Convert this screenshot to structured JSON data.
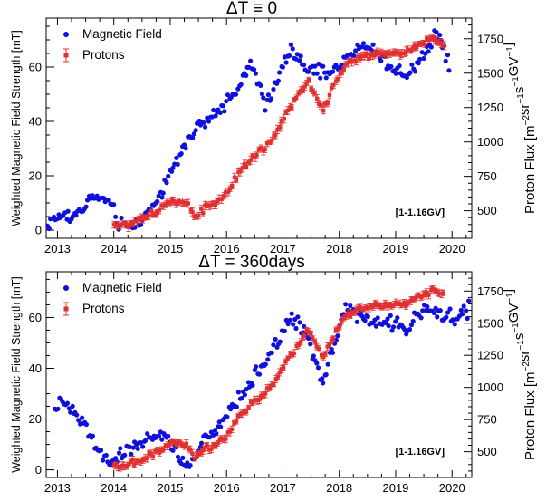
{
  "chart_data": [
    {
      "type": "scatter",
      "title": "ΔT ≡ 0",
      "xlabel": "",
      "ylabel": "Weighted Magnetic Field Strength [mT]",
      "y2label": "Proton Flux [m⁻²sr⁻¹s⁻¹GV⁻¹]",
      "xlim": [
        2012.8,
        2020.35
      ],
      "ylim": [
        -3,
        78
      ],
      "y2lim": [
        300,
        1900
      ],
      "x_ticks": [
        "2013",
        "2014",
        "2015",
        "2016",
        "2017",
        "2018",
        "2019",
        "2020"
      ],
      "y_ticks": [
        "0",
        "20",
        "40",
        "60"
      ],
      "y2_ticks": [
        "500",
        "750",
        "1000",
        "1250",
        "1500",
        "1750"
      ],
      "annotation": "[1-1.16GV]",
      "legend": {
        "position": "top-left"
      },
      "series": [
        {
          "name": "Magnetic Field",
          "color": "#1010dd",
          "axis": "left",
          "marker": "circle",
          "anchors": [
            [
              2012.82,
              2
            ],
            [
              2013.0,
              5
            ],
            [
              2013.2,
              5
            ],
            [
              2013.4,
              6
            ],
            [
              2013.55,
              12
            ],
            [
              2013.9,
              11
            ],
            [
              2014.1,
              2
            ],
            [
              2014.3,
              1
            ],
            [
              2014.6,
              6
            ],
            [
              2014.9,
              16
            ],
            [
              2015.2,
              30
            ],
            [
              2015.5,
              38
            ],
            [
              2015.8,
              42
            ],
            [
              2016.1,
              50
            ],
            [
              2016.3,
              56
            ],
            [
              2016.47,
              61
            ],
            [
              2016.7,
              45
            ],
            [
              2016.9,
              55
            ],
            [
              2017.15,
              68
            ],
            [
              2017.3,
              62
            ],
            [
              2017.5,
              58
            ],
            [
              2017.8,
              58
            ],
            [
              2018.0,
              60
            ],
            [
              2018.3,
              67
            ],
            [
              2018.6,
              67
            ],
            [
              2018.9,
              60
            ],
            [
              2019.2,
              57
            ],
            [
              2019.5,
              65
            ],
            [
              2019.75,
              73
            ],
            [
              2019.85,
              66
            ],
            [
              2019.95,
              61
            ]
          ],
          "jitter": 2.6,
          "count": 250
        },
        {
          "name": "Protons",
          "color": "#e03030",
          "axis": "right",
          "marker": "square",
          "error_bars": true,
          "anchors": [
            [
              2014.0,
              400
            ],
            [
              2014.25,
              395
            ],
            [
              2014.5,
              440
            ],
            [
              2014.8,
              510
            ],
            [
              2015.0,
              570
            ],
            [
              2015.3,
              560
            ],
            [
              2015.45,
              450
            ],
            [
              2015.6,
              520
            ],
            [
              2015.8,
              560
            ],
            [
              2016.0,
              620
            ],
            [
              2016.2,
              760
            ],
            [
              2016.5,
              900
            ],
            [
              2016.8,
              1000
            ],
            [
              2017.0,
              1170
            ],
            [
              2017.3,
              1350
            ],
            [
              2017.45,
              1450
            ],
            [
              2017.6,
              1310
            ],
            [
              2017.72,
              1230
            ],
            [
              2017.85,
              1370
            ],
            [
              2018.1,
              1550
            ],
            [
              2018.4,
              1630
            ],
            [
              2018.8,
              1640
            ],
            [
              2019.1,
              1640
            ],
            [
              2019.4,
              1700
            ],
            [
              2019.65,
              1760
            ],
            [
              2019.85,
              1720
            ]
          ],
          "jitter": 22,
          "count": 160
        }
      ]
    },
    {
      "type": "scatter",
      "title": "ΔT = 360days",
      "xlabel": "",
      "ylabel": "Weighted Magnetic Field Strength [mT]",
      "y2label": "Proton Flux [m⁻²sr⁻¹s⁻¹GV⁻¹]",
      "xlim": [
        2012.8,
        2020.35
      ],
      "ylim": [
        -3,
        78
      ],
      "y2lim": [
        300,
        1900
      ],
      "x_ticks": [
        "2013",
        "2014",
        "2015",
        "2016",
        "2017",
        "2018",
        "2019",
        "2020"
      ],
      "y_ticks": [
        "0",
        "20",
        "40",
        "60"
      ],
      "y2_ticks": [
        "500",
        "750",
        "1000",
        "1250",
        "1500",
        "1750"
      ],
      "annotation": "[1-1.16GV]",
      "legend": {
        "position": "top-left"
      },
      "series": [
        {
          "name": "Magnetic Field",
          "color": "#1010dd",
          "axis": "left",
          "marker": "circle",
          "anchors": [
            [
              2012.95,
              25
            ],
            [
              2013.1,
              26
            ],
            [
              2013.3,
              22
            ],
            [
              2013.5,
              17
            ],
            [
              2013.7,
              8
            ],
            [
              2013.9,
              3
            ],
            [
              2014.1,
              5
            ],
            [
              2014.4,
              10
            ],
            [
              2014.6,
              12
            ],
            [
              2014.9,
              14
            ],
            [
              2015.1,
              8
            ],
            [
              2015.2,
              3
            ],
            [
              2015.35,
              2
            ],
            [
              2015.6,
              12
            ],
            [
              2015.8,
              14
            ],
            [
              2016.0,
              22
            ],
            [
              2016.3,
              30
            ],
            [
              2016.6,
              40
            ],
            [
              2016.9,
              50
            ],
            [
              2017.15,
              60
            ],
            [
              2017.4,
              55
            ],
            [
              2017.6,
              41
            ],
            [
              2017.72,
              35
            ],
            [
              2017.9,
              50
            ],
            [
              2018.1,
              64
            ],
            [
              2018.3,
              61
            ],
            [
              2018.6,
              58
            ],
            [
              2018.9,
              58
            ],
            [
              2019.2,
              56
            ],
            [
              2019.5,
              63
            ],
            [
              2019.75,
              62
            ],
            [
              2020.0,
              60
            ],
            [
              2020.3,
              63
            ]
          ],
          "jitter": 2.6,
          "count": 260
        },
        {
          "name": "Protons",
          "color": "#e03030",
          "axis": "right",
          "marker": "square",
          "error_bars": true,
          "anchors": [
            [
              2014.0,
              400
            ],
            [
              2014.25,
              395
            ],
            [
              2014.5,
              440
            ],
            [
              2014.8,
              510
            ],
            [
              2015.0,
              570
            ],
            [
              2015.3,
              560
            ],
            [
              2015.45,
              450
            ],
            [
              2015.6,
              520
            ],
            [
              2015.8,
              560
            ],
            [
              2016.0,
              620
            ],
            [
              2016.2,
              760
            ],
            [
              2016.5,
              900
            ],
            [
              2016.8,
              1000
            ],
            [
              2017.0,
              1170
            ],
            [
              2017.3,
              1350
            ],
            [
              2017.45,
              1450
            ],
            [
              2017.6,
              1310
            ],
            [
              2017.72,
              1230
            ],
            [
              2017.85,
              1370
            ],
            [
              2018.1,
              1550
            ],
            [
              2018.4,
              1630
            ],
            [
              2018.8,
              1640
            ],
            [
              2019.1,
              1640
            ],
            [
              2019.4,
              1700
            ],
            [
              2019.65,
              1760
            ],
            [
              2019.85,
              1720
            ]
          ],
          "jitter": 22,
          "count": 160
        }
      ]
    }
  ]
}
